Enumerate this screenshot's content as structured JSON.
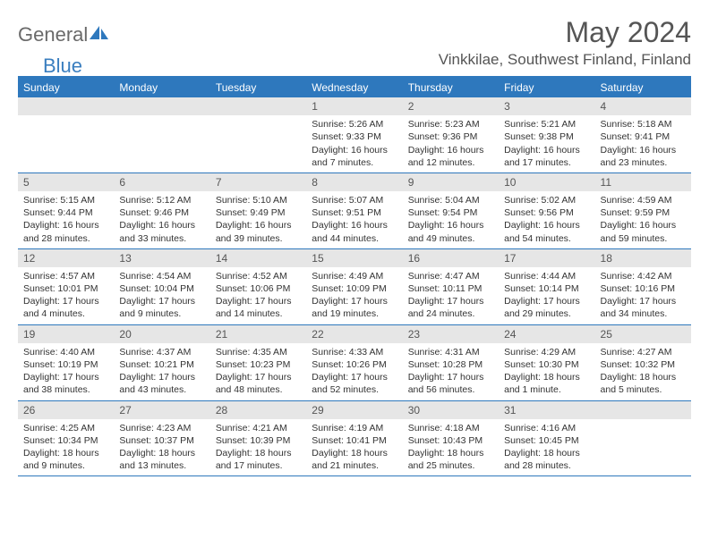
{
  "logo": {
    "text1": "General",
    "text2": "Blue"
  },
  "title": "May 2024",
  "location": "Vinkkilae, Southwest Finland, Finland",
  "colors": {
    "header_bg": "#2e78bd",
    "header_text": "#ffffff",
    "band_bg": "#e6e6e6",
    "border": "#2e78bd",
    "logo_gray": "#6a6a6a",
    "logo_blue": "#3a7ebf"
  },
  "day_headers": [
    "Sunday",
    "Monday",
    "Tuesday",
    "Wednesday",
    "Thursday",
    "Friday",
    "Saturday"
  ],
  "weeks": [
    [
      {
        "day": "",
        "sunrise": "",
        "sunset": "",
        "daylight1": "",
        "daylight2": ""
      },
      {
        "day": "",
        "sunrise": "",
        "sunset": "",
        "daylight1": "",
        "daylight2": ""
      },
      {
        "day": "",
        "sunrise": "",
        "sunset": "",
        "daylight1": "",
        "daylight2": ""
      },
      {
        "day": "1",
        "sunrise": "Sunrise: 5:26 AM",
        "sunset": "Sunset: 9:33 PM",
        "daylight1": "Daylight: 16 hours",
        "daylight2": "and 7 minutes."
      },
      {
        "day": "2",
        "sunrise": "Sunrise: 5:23 AM",
        "sunset": "Sunset: 9:36 PM",
        "daylight1": "Daylight: 16 hours",
        "daylight2": "and 12 minutes."
      },
      {
        "day": "3",
        "sunrise": "Sunrise: 5:21 AM",
        "sunset": "Sunset: 9:38 PM",
        "daylight1": "Daylight: 16 hours",
        "daylight2": "and 17 minutes."
      },
      {
        "day": "4",
        "sunrise": "Sunrise: 5:18 AM",
        "sunset": "Sunset: 9:41 PM",
        "daylight1": "Daylight: 16 hours",
        "daylight2": "and 23 minutes."
      }
    ],
    [
      {
        "day": "5",
        "sunrise": "Sunrise: 5:15 AM",
        "sunset": "Sunset: 9:44 PM",
        "daylight1": "Daylight: 16 hours",
        "daylight2": "and 28 minutes."
      },
      {
        "day": "6",
        "sunrise": "Sunrise: 5:12 AM",
        "sunset": "Sunset: 9:46 PM",
        "daylight1": "Daylight: 16 hours",
        "daylight2": "and 33 minutes."
      },
      {
        "day": "7",
        "sunrise": "Sunrise: 5:10 AM",
        "sunset": "Sunset: 9:49 PM",
        "daylight1": "Daylight: 16 hours",
        "daylight2": "and 39 minutes."
      },
      {
        "day": "8",
        "sunrise": "Sunrise: 5:07 AM",
        "sunset": "Sunset: 9:51 PM",
        "daylight1": "Daylight: 16 hours",
        "daylight2": "and 44 minutes."
      },
      {
        "day": "9",
        "sunrise": "Sunrise: 5:04 AM",
        "sunset": "Sunset: 9:54 PM",
        "daylight1": "Daylight: 16 hours",
        "daylight2": "and 49 minutes."
      },
      {
        "day": "10",
        "sunrise": "Sunrise: 5:02 AM",
        "sunset": "Sunset: 9:56 PM",
        "daylight1": "Daylight: 16 hours",
        "daylight2": "and 54 minutes."
      },
      {
        "day": "11",
        "sunrise": "Sunrise: 4:59 AM",
        "sunset": "Sunset: 9:59 PM",
        "daylight1": "Daylight: 16 hours",
        "daylight2": "and 59 minutes."
      }
    ],
    [
      {
        "day": "12",
        "sunrise": "Sunrise: 4:57 AM",
        "sunset": "Sunset: 10:01 PM",
        "daylight1": "Daylight: 17 hours",
        "daylight2": "and 4 minutes."
      },
      {
        "day": "13",
        "sunrise": "Sunrise: 4:54 AM",
        "sunset": "Sunset: 10:04 PM",
        "daylight1": "Daylight: 17 hours",
        "daylight2": "and 9 minutes."
      },
      {
        "day": "14",
        "sunrise": "Sunrise: 4:52 AM",
        "sunset": "Sunset: 10:06 PM",
        "daylight1": "Daylight: 17 hours",
        "daylight2": "and 14 minutes."
      },
      {
        "day": "15",
        "sunrise": "Sunrise: 4:49 AM",
        "sunset": "Sunset: 10:09 PM",
        "daylight1": "Daylight: 17 hours",
        "daylight2": "and 19 minutes."
      },
      {
        "day": "16",
        "sunrise": "Sunrise: 4:47 AM",
        "sunset": "Sunset: 10:11 PM",
        "daylight1": "Daylight: 17 hours",
        "daylight2": "and 24 minutes."
      },
      {
        "day": "17",
        "sunrise": "Sunrise: 4:44 AM",
        "sunset": "Sunset: 10:14 PM",
        "daylight1": "Daylight: 17 hours",
        "daylight2": "and 29 minutes."
      },
      {
        "day": "18",
        "sunrise": "Sunrise: 4:42 AM",
        "sunset": "Sunset: 10:16 PM",
        "daylight1": "Daylight: 17 hours",
        "daylight2": "and 34 minutes."
      }
    ],
    [
      {
        "day": "19",
        "sunrise": "Sunrise: 4:40 AM",
        "sunset": "Sunset: 10:19 PM",
        "daylight1": "Daylight: 17 hours",
        "daylight2": "and 38 minutes."
      },
      {
        "day": "20",
        "sunrise": "Sunrise: 4:37 AM",
        "sunset": "Sunset: 10:21 PM",
        "daylight1": "Daylight: 17 hours",
        "daylight2": "and 43 minutes."
      },
      {
        "day": "21",
        "sunrise": "Sunrise: 4:35 AM",
        "sunset": "Sunset: 10:23 PM",
        "daylight1": "Daylight: 17 hours",
        "daylight2": "and 48 minutes."
      },
      {
        "day": "22",
        "sunrise": "Sunrise: 4:33 AM",
        "sunset": "Sunset: 10:26 PM",
        "daylight1": "Daylight: 17 hours",
        "daylight2": "and 52 minutes."
      },
      {
        "day": "23",
        "sunrise": "Sunrise: 4:31 AM",
        "sunset": "Sunset: 10:28 PM",
        "daylight1": "Daylight: 17 hours",
        "daylight2": "and 56 minutes."
      },
      {
        "day": "24",
        "sunrise": "Sunrise: 4:29 AM",
        "sunset": "Sunset: 10:30 PM",
        "daylight1": "Daylight: 18 hours",
        "daylight2": "and 1 minute."
      },
      {
        "day": "25",
        "sunrise": "Sunrise: 4:27 AM",
        "sunset": "Sunset: 10:32 PM",
        "daylight1": "Daylight: 18 hours",
        "daylight2": "and 5 minutes."
      }
    ],
    [
      {
        "day": "26",
        "sunrise": "Sunrise: 4:25 AM",
        "sunset": "Sunset: 10:34 PM",
        "daylight1": "Daylight: 18 hours",
        "daylight2": "and 9 minutes."
      },
      {
        "day": "27",
        "sunrise": "Sunrise: 4:23 AM",
        "sunset": "Sunset: 10:37 PM",
        "daylight1": "Daylight: 18 hours",
        "daylight2": "and 13 minutes."
      },
      {
        "day": "28",
        "sunrise": "Sunrise: 4:21 AM",
        "sunset": "Sunset: 10:39 PM",
        "daylight1": "Daylight: 18 hours",
        "daylight2": "and 17 minutes."
      },
      {
        "day": "29",
        "sunrise": "Sunrise: 4:19 AM",
        "sunset": "Sunset: 10:41 PM",
        "daylight1": "Daylight: 18 hours",
        "daylight2": "and 21 minutes."
      },
      {
        "day": "30",
        "sunrise": "Sunrise: 4:18 AM",
        "sunset": "Sunset: 10:43 PM",
        "daylight1": "Daylight: 18 hours",
        "daylight2": "and 25 minutes."
      },
      {
        "day": "31",
        "sunrise": "Sunrise: 4:16 AM",
        "sunset": "Sunset: 10:45 PM",
        "daylight1": "Daylight: 18 hours",
        "daylight2": "and 28 minutes."
      },
      {
        "day": "",
        "sunrise": "",
        "sunset": "",
        "daylight1": "",
        "daylight2": ""
      }
    ]
  ]
}
